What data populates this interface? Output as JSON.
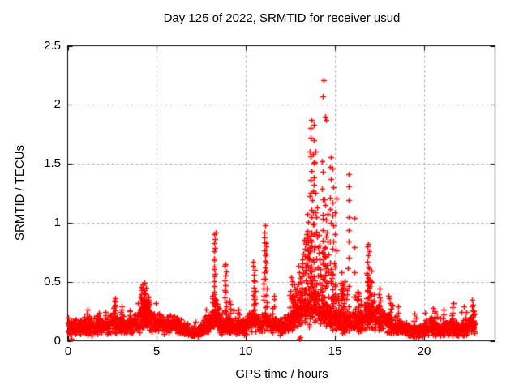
{
  "figure": {
    "background": "#ffffff"
  },
  "chart_data": {
    "type": "scatter",
    "title": "Day 125 of 2022, SRMTID for receiver usud",
    "xlabel": "GPS time / hours",
    "ylabel": "SRMTID / TECUs",
    "xlim": [
      0,
      24
    ],
    "ylim": [
      0,
      2.5
    ],
    "xticks": [
      0,
      5,
      10,
      15,
      20
    ],
    "yticks": [
      0,
      0.5,
      1,
      1.5,
      2,
      2.5
    ],
    "grid": true,
    "legend": "none",
    "marker": "plus",
    "marker_size_px": 7,
    "colors": {
      "points": "#ff0000",
      "grid": "#ababab",
      "frame": "#000000",
      "text": "#000000"
    },
    "seed": 20220125,
    "sampling_hours_step": 0.01,
    "baseline_range": [
      0.02,
      22.88
    ],
    "baseline_profile": [
      [
        0,
        0.1
      ],
      [
        0.5,
        0.11
      ],
      [
        1,
        0.13
      ],
      [
        1.5,
        0.12
      ],
      [
        2,
        0.13
      ],
      [
        2.5,
        0.15
      ],
      [
        3,
        0.13
      ],
      [
        3.5,
        0.13
      ],
      [
        4,
        0.17
      ],
      [
        4.5,
        0.2
      ],
      [
        5,
        0.15
      ],
      [
        5.5,
        0.14
      ],
      [
        6,
        0.13
      ],
      [
        6.5,
        0.11
      ],
      [
        7,
        0.07
      ],
      [
        7.3,
        0.08
      ],
      [
        7.7,
        0.13
      ],
      [
        8,
        0.16
      ],
      [
        8.3,
        0.2
      ],
      [
        8.7,
        0.12
      ],
      [
        9,
        0.13
      ],
      [
        9.5,
        0.11
      ],
      [
        10,
        0.13
      ],
      [
        10.4,
        0.18
      ],
      [
        10.8,
        0.13
      ],
      [
        11,
        0.16
      ],
      [
        11.3,
        0.14
      ],
      [
        11.6,
        0.13
      ],
      [
        12,
        0.13
      ],
      [
        12.4,
        0.16
      ],
      [
        12.7,
        0.2
      ],
      [
        13,
        0.22
      ],
      [
        13.3,
        0.28
      ],
      [
        13.6,
        0.3
      ],
      [
        13.9,
        0.28
      ],
      [
        14.2,
        0.25
      ],
      [
        14.5,
        0.22
      ],
      [
        14.8,
        0.2
      ],
      [
        15,
        0.18
      ],
      [
        15.5,
        0.16
      ],
      [
        16,
        0.15
      ],
      [
        16.5,
        0.17
      ],
      [
        16.9,
        0.22
      ],
      [
        17.2,
        0.2
      ],
      [
        17.5,
        0.18
      ],
      [
        18,
        0.15
      ],
      [
        18.5,
        0.12
      ],
      [
        19,
        0.1
      ],
      [
        19.3,
        0.09
      ],
      [
        19.7,
        0.08
      ],
      [
        20,
        0.1
      ],
      [
        20.5,
        0.12
      ],
      [
        21,
        0.1
      ],
      [
        21.5,
        0.11
      ],
      [
        22,
        0.1
      ],
      [
        22.4,
        0.12
      ],
      [
        22.88,
        0.16
      ]
    ],
    "spikes": [
      [
        1.15,
        0.27,
        0.08,
        8
      ],
      [
        1.7,
        0.25,
        0.1,
        8
      ],
      [
        2.6,
        0.38,
        0.08,
        14
      ],
      [
        3.05,
        0.3,
        0.08,
        10
      ],
      [
        3.5,
        0.28,
        0.1,
        8
      ],
      [
        4.2,
        0.5,
        0.12,
        22
      ],
      [
        4.4,
        0.46,
        0.1,
        16
      ],
      [
        4.55,
        0.38,
        0.08,
        10
      ],
      [
        4.3,
        0.35,
        0.25,
        20
      ],
      [
        8.2,
        0.4,
        0.1,
        10
      ],
      [
        8.25,
        0.95,
        0.05,
        22
      ],
      [
        8.45,
        0.32,
        0.06,
        8
      ],
      [
        8.85,
        0.68,
        0.05,
        16
      ],
      [
        9.1,
        0.35,
        0.06,
        8
      ],
      [
        9.6,
        0.28,
        0.08,
        8
      ],
      [
        10.45,
        0.68,
        0.06,
        16
      ],
      [
        10.55,
        0.45,
        0.05,
        8
      ],
      [
        11.05,
        1.0,
        0.05,
        18
      ],
      [
        11.15,
        0.88,
        0.06,
        12
      ],
      [
        11.55,
        0.4,
        0.06,
        8
      ],
      [
        12.55,
        0.55,
        0.1,
        12
      ],
      [
        12.6,
        0.4,
        0.2,
        15
      ],
      [
        12.8,
        0.5,
        0.08,
        10
      ],
      [
        13.0,
        0.65,
        0.06,
        12
      ],
      [
        13.0,
        0.45,
        0.15,
        15
      ],
      [
        13.2,
        0.75,
        0.08,
        14
      ],
      [
        13.35,
        0.95,
        0.06,
        14
      ],
      [
        13.5,
        1.1,
        0.06,
        14
      ],
      [
        13.6,
        0.9,
        0.25,
        30
      ],
      [
        13.65,
        1.92,
        0.05,
        20
      ],
      [
        13.78,
        1.85,
        0.05,
        16
      ],
      [
        13.88,
        1.68,
        0.05,
        12
      ],
      [
        14.0,
        1.15,
        0.06,
        12
      ],
      [
        14.15,
        0.95,
        0.06,
        10
      ],
      [
        14.3,
        1.55,
        0.05,
        14
      ],
      [
        14.4,
        0.8,
        0.2,
        25
      ],
      [
        14.45,
        1.3,
        0.05,
        10
      ],
      [
        14.6,
        1.1,
        0.05,
        10
      ],
      [
        14.75,
        1.65,
        0.04,
        12
      ],
      [
        14.9,
        1.5,
        0.05,
        12
      ],
      [
        14.9,
        0.6,
        0.15,
        15
      ],
      [
        15.05,
        1.35,
        0.05,
        8
      ],
      [
        15.3,
        0.6,
        0.06,
        8
      ],
      [
        15.4,
        0.5,
        0.3,
        20
      ],
      [
        15.5,
        0.55,
        0.06,
        8
      ],
      [
        15.75,
        1.45,
        0.05,
        12
      ],
      [
        16.1,
        1.2,
        0.04,
        5
      ],
      [
        16.3,
        0.4,
        0.2,
        12
      ],
      [
        16.35,
        0.45,
        0.06,
        8
      ],
      [
        16.85,
        0.85,
        0.06,
        18
      ],
      [
        16.95,
        0.6,
        0.2,
        15
      ],
      [
        17.0,
        0.55,
        0.06,
        10
      ],
      [
        17.5,
        0.45,
        0.06,
        10
      ],
      [
        18.1,
        0.4,
        0.08,
        10
      ],
      [
        18.5,
        0.3,
        0.08,
        6
      ],
      [
        19.5,
        0.25,
        0.08,
        6
      ],
      [
        20.6,
        0.3,
        0.08,
        8
      ],
      [
        21.1,
        0.28,
        0.08,
        6
      ],
      [
        21.6,
        0.33,
        0.08,
        8
      ],
      [
        22.3,
        0.3,
        0.08,
        6
      ],
      [
        22.75,
        0.35,
        0.06,
        10
      ]
    ],
    "extra_points": [
      [
        14.35,
        2.21
      ],
      [
        14.33,
        2.07
      ],
      [
        14.52,
        1.87
      ],
      [
        14.48,
        1.9
      ],
      [
        0.18,
        0.02
      ],
      [
        0.2,
        0.015
      ],
      [
        12.98,
        0.02
      ],
      [
        13.07,
        0.03
      ]
    ]
  }
}
